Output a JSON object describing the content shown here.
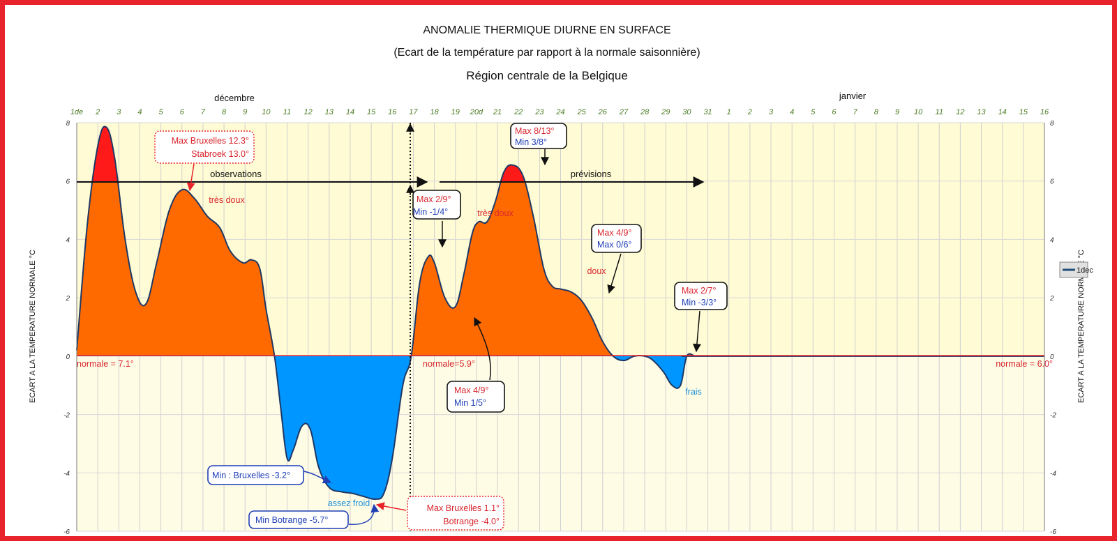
{
  "titles": {
    "title": "ANOMALIE THERMIQUE DIURNE EN SURFACE",
    "subtitle": "(Ecart de la température par rapport à la normale saisonnière)",
    "region": "Région centrale de la Belgique"
  },
  "months": {
    "december": "décembre",
    "january": "janvier"
  },
  "axes": {
    "ylabel_left": "ECART A LA TEMPERATURE NORMALE °C",
    "ylabel_right": "ECART A LA TEMPERATURE NORMALE °C"
  },
  "legend": {
    "label": "1dec",
    "color": "#1f4e79"
  },
  "colors": {
    "positive": "#ff6a00",
    "positive_extreme": "#ff1a1a",
    "negative": "#0096ff",
    "line": "#1f3864",
    "plot_bg": "#fffbd4",
    "frame": "#e8232b"
  },
  "chart_data": {
    "type": "area",
    "x_tick_labels": [
      "1de",
      "2",
      "3",
      "4",
      "5",
      "6",
      "7",
      "8",
      "9",
      "10",
      "11",
      "12",
      "13",
      "14",
      "15",
      "16",
      "17",
      "18",
      "19",
      "20d",
      "21",
      "22",
      "23",
      "24",
      "25",
      "26",
      "27",
      "28",
      "29",
      "30",
      "31",
      "1",
      "2",
      "3",
      "4",
      "5",
      "6",
      "7",
      "8",
      "9",
      "10",
      "11",
      "12",
      "13",
      "14",
      "15",
      "16"
    ],
    "ylim": [
      -6,
      8
    ],
    "y_ticks": [
      -6,
      -4,
      -2,
      0,
      2,
      4,
      6,
      8
    ],
    "grid": true,
    "legend_position": "right",
    "series": [
      {
        "name": "1dec",
        "x": [
          1,
          1.5,
          2,
          2.4,
          2.8,
          3.3,
          3.8,
          4.3,
          4.8,
          5.4,
          6.0,
          6.6,
          7.2,
          7.8,
          8.3,
          8.9,
          9.3,
          9.7,
          10.0,
          10.4,
          10.7,
          11.0,
          11.3,
          11.7,
          12.1,
          12.5,
          13.0,
          13.6,
          14.1,
          14.6,
          15.2,
          15.6,
          16.0,
          16.5,
          16.9,
          17.3,
          17.7,
          18.0,
          18.5,
          19.0,
          19.4,
          19.8,
          20.1,
          20.5,
          20.9,
          21.3,
          21.7,
          22.2,
          22.7,
          23.2,
          23.6,
          24.0,
          24.5,
          25.0,
          25.5,
          26.0,
          26.5,
          27.0,
          27.5,
          28.0,
          28.4,
          28.9,
          29.3,
          29.7,
          30.0,
          30.4,
          30.7,
          31.0,
          31.05,
          47
        ],
        "y": [
          0.2,
          4.5,
          7.2,
          7.85,
          6.8,
          4.0,
          2.2,
          1.8,
          3.2,
          5.0,
          5.7,
          5.4,
          4.8,
          4.4,
          3.6,
          3.2,
          3.3,
          3.0,
          1.6,
          0.0,
          -1.8,
          -3.5,
          -3.2,
          -2.4,
          -2.5,
          -3.8,
          -4.5,
          -4.65,
          -4.7,
          -4.8,
          -4.9,
          -4.7,
          -3.5,
          -1.0,
          0.0,
          2.5,
          3.4,
          3.2,
          2.0,
          1.7,
          2.8,
          4.2,
          4.6,
          4.6,
          5.3,
          6.3,
          6.55,
          6.2,
          4.8,
          3.0,
          2.4,
          2.3,
          2.2,
          1.9,
          1.3,
          0.5,
          0.0,
          -0.15,
          0.0,
          0.0,
          -0.15,
          -0.55,
          -1.0,
          -1.0,
          0.0,
          0.0,
          0.0,
          0.0,
          0.0,
          0.0
        ]
      }
    ],
    "annotations": {
      "observations": "observations",
      "previsions": "prévisions",
      "tres_doux_1": "très doux",
      "tres_doux_2": "très doux",
      "doux": "doux",
      "frais": "frais",
      "assez_froid": "assez froid",
      "normale_1": "normale = 7.1°",
      "normale_2": "normale=5.9°",
      "normale_3": "normale = 6.0°",
      "box_max_brux_1": "Max Bruxelles 12.3°",
      "box_stabroek": "Stabroek 13.0°",
      "box_max_8_13": "Max 8/13°",
      "box_min_3_8": "Min 3/8°",
      "box_max_2_9": "Max 2/9°",
      "box_min_m1_4": "Min  -1/4°",
      "box_max_4_9a": "Max 4/9°",
      "box_max_0_6": "Max 0/6°",
      "box_max_2_7": "Max 2/7°",
      "box_min_m3_3": "Min -3/3°",
      "box_max_4_9b": "Max 4/9°",
      "box_min_1_5": "Min 1/5°",
      "box_min_brux": "Min : Bruxelles -3.2°",
      "box_min_botrange": "Min Botrange -5.7°",
      "box_max_brux_2": "Max Bruxelles 1.1°",
      "box_botrange": "Botrange -4.0°"
    }
  }
}
